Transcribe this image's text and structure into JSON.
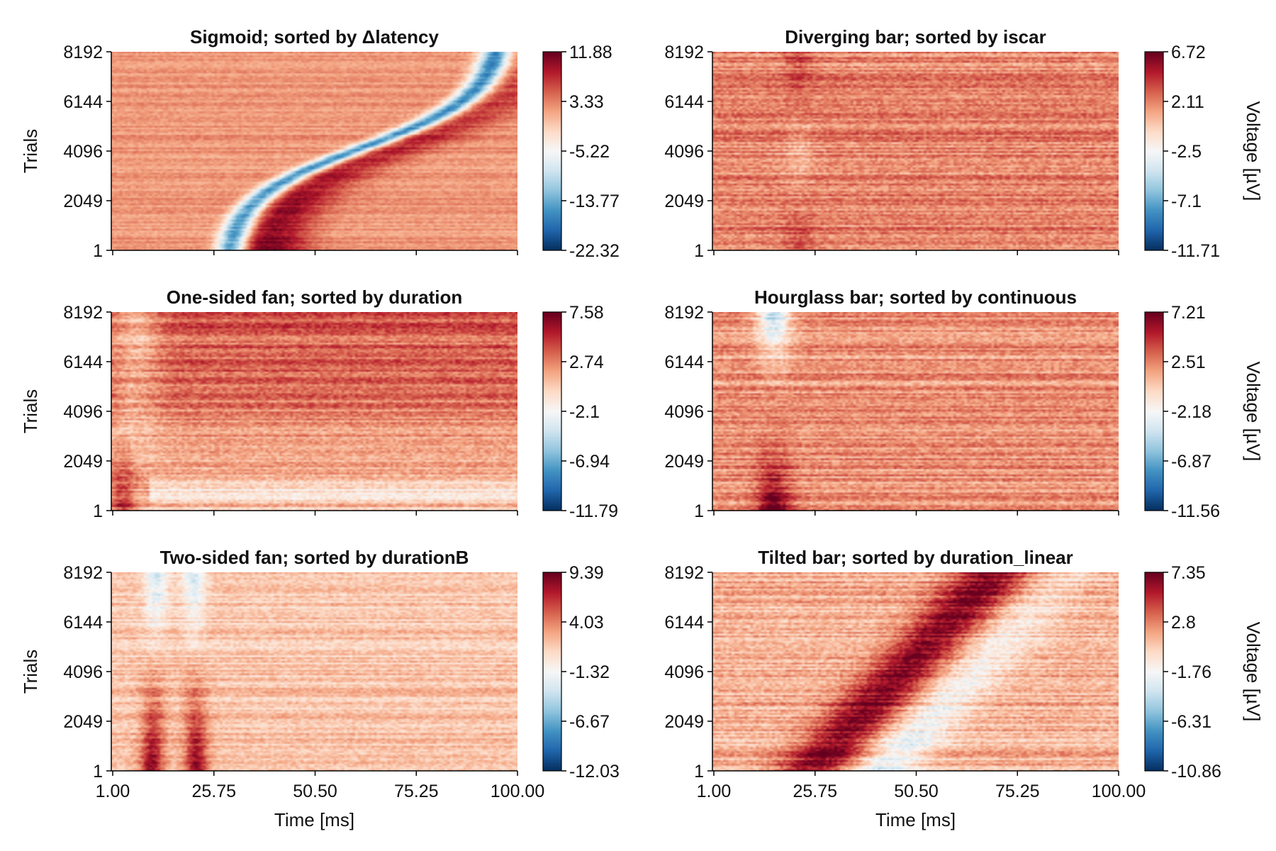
{
  "chart_data": [
    {
      "type": "heatmap",
      "title": "Sigmoid; sorted by Δlatency",
      "xlabel": "",
      "ylabel": "Trials",
      "colorbar_label": "",
      "xlim": [
        1,
        100
      ],
      "ylim": [
        1,
        8192
      ],
      "x_ticks": [
        "1.00",
        "25.75",
        "50.50",
        "75.25",
        "100.00"
      ],
      "x_tick_labels_shown": false,
      "y_ticks": [
        "1",
        "2049",
        "4096",
        "6144",
        "8192"
      ],
      "colorbar_range": [
        -22.32,
        11.88
      ],
      "colorbar_ticks": [
        "-22.32",
        "-13.77",
        "-5.22",
        "3.33",
        "11.88"
      ],
      "pattern": "sigmoid",
      "colormap": [
        "#053061",
        "#2166ac",
        "#4393c3",
        "#92c5de",
        "#d1e5f0",
        "#f7f7f7",
        "#fddbc7",
        "#f4a582",
        "#d6604d",
        "#b2182b",
        "#67001f"
      ]
    },
    {
      "type": "heatmap",
      "title": "Diverging bar; sorted by iscar",
      "xlabel": "",
      "ylabel": "",
      "colorbar_label": "Voltage [µV]",
      "xlim": [
        1,
        100
      ],
      "ylim": [
        1,
        8192
      ],
      "x_ticks": [
        "1.00",
        "25.75",
        "50.50",
        "75.25",
        "100.00"
      ],
      "x_tick_labels_shown": false,
      "y_ticks": [
        "1",
        "2049",
        "4096",
        "6144",
        "8192"
      ],
      "colorbar_range": [
        -11.71,
        6.72
      ],
      "colorbar_ticks": [
        "-11.71",
        "-7.1",
        "-2.5",
        "2.11",
        "6.72"
      ],
      "pattern": "diverging",
      "colormap": [
        "#053061",
        "#2166ac",
        "#4393c3",
        "#92c5de",
        "#d1e5f0",
        "#f7f7f7",
        "#fddbc7",
        "#f4a582",
        "#d6604d",
        "#b2182b",
        "#67001f"
      ]
    },
    {
      "type": "heatmap",
      "title": "One-sided fan; sorted by duration",
      "xlabel": "",
      "ylabel": "Trials",
      "colorbar_label": "",
      "xlim": [
        1,
        100
      ],
      "ylim": [
        1,
        8192
      ],
      "x_ticks": [
        "1.00",
        "25.75",
        "50.50",
        "75.25",
        "100.00"
      ],
      "x_tick_labels_shown": false,
      "y_ticks": [
        "1",
        "2049",
        "4096",
        "6144",
        "8192"
      ],
      "colorbar_range": [
        -11.79,
        7.58
      ],
      "colorbar_ticks": [
        "-11.79",
        "-6.94",
        "-2.1",
        "2.74",
        "7.58"
      ],
      "pattern": "onefan",
      "colormap": [
        "#053061",
        "#2166ac",
        "#4393c3",
        "#92c5de",
        "#d1e5f0",
        "#f7f7f7",
        "#fddbc7",
        "#f4a582",
        "#d6604d",
        "#b2182b",
        "#67001f"
      ]
    },
    {
      "type": "heatmap",
      "title": "Hourglass bar; sorted by continuous",
      "xlabel": "",
      "ylabel": "",
      "colorbar_label": "Voltage [µV]",
      "xlim": [
        1,
        100
      ],
      "ylim": [
        1,
        8192
      ],
      "x_ticks": [
        "1.00",
        "25.75",
        "50.50",
        "75.25",
        "100.00"
      ],
      "x_tick_labels_shown": false,
      "y_ticks": [
        "1",
        "2049",
        "4096",
        "6144",
        "8192"
      ],
      "colorbar_range": [
        -11.56,
        7.21
      ],
      "colorbar_ticks": [
        "-11.56",
        "-6.87",
        "-2.18",
        "2.51",
        "7.21"
      ],
      "pattern": "hourglass",
      "colormap": [
        "#053061",
        "#2166ac",
        "#4393c3",
        "#92c5de",
        "#d1e5f0",
        "#f7f7f7",
        "#fddbc7",
        "#f4a582",
        "#d6604d",
        "#b2182b",
        "#67001f"
      ]
    },
    {
      "type": "heatmap",
      "title": "Two-sided fan; sorted by durationB",
      "xlabel": "Time [ms]",
      "ylabel": "Trials",
      "colorbar_label": "",
      "xlim": [
        1,
        100
      ],
      "ylim": [
        1,
        8192
      ],
      "x_ticks": [
        "1.00",
        "25.75",
        "50.50",
        "75.25",
        "100.00"
      ],
      "x_tick_labels_shown": true,
      "y_ticks": [
        "1",
        "2049",
        "4096",
        "6144",
        "8192"
      ],
      "colorbar_range": [
        -12.03,
        9.39
      ],
      "colorbar_ticks": [
        "-12.03",
        "-6.67",
        "-1.32",
        "4.03",
        "9.39"
      ],
      "pattern": "twofan",
      "colormap": [
        "#053061",
        "#2166ac",
        "#4393c3",
        "#92c5de",
        "#d1e5f0",
        "#f7f7f7",
        "#fddbc7",
        "#f4a582",
        "#d6604d",
        "#b2182b",
        "#67001f"
      ]
    },
    {
      "type": "heatmap",
      "title": "Tilted bar; sorted by duration_linear",
      "xlabel": "Time [ms]",
      "ylabel": "",
      "colorbar_label": "Voltage [µV]",
      "xlim": [
        1,
        100
      ],
      "ylim": [
        1,
        8192
      ],
      "x_ticks": [
        "1.00",
        "25.75",
        "50.50",
        "75.25",
        "100.00"
      ],
      "x_tick_labels_shown": true,
      "y_ticks": [
        "1",
        "2049",
        "4096",
        "6144",
        "8192"
      ],
      "colorbar_range": [
        -10.86,
        7.35
      ],
      "colorbar_ticks": [
        "-10.86",
        "-6.31",
        "-1.76",
        "2.8",
        "7.35"
      ],
      "pattern": "tilted",
      "colormap": [
        "#053061",
        "#2166ac",
        "#4393c3",
        "#92c5de",
        "#d1e5f0",
        "#f7f7f7",
        "#fddbc7",
        "#f4a582",
        "#d6604d",
        "#b2182b",
        "#67001f"
      ]
    }
  ]
}
